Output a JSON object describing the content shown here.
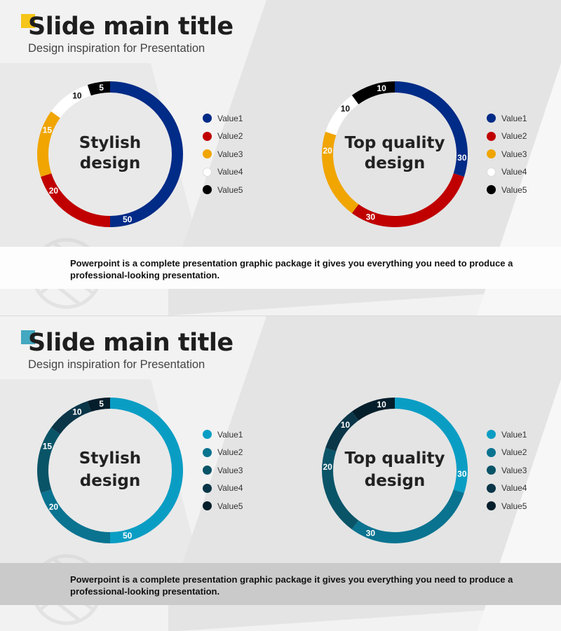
{
  "slides": [
    {
      "title": "Slide main title",
      "subtitle": "Design inspiration for Presentation",
      "accent_color": "#f5c518",
      "footer_text": "Powerpoint is a complete presentation graphic package it gives you everything you need to produce a professional-looking presentation.",
      "footer_band_color": "#fdfdfd",
      "legend": [
        "Value1",
        "Value2",
        "Value3",
        "Value4",
        "Value5"
      ],
      "colors": [
        "#002b87",
        "#c00000",
        "#f0a500",
        "#ffffff",
        "#000000"
      ],
      "label_colors": [
        "#ffffff",
        "#ffffff",
        "#ffffff",
        "#111111",
        "#ffffff"
      ],
      "legend_dot_borders": [
        "",
        "",
        "",
        "#dddddd",
        ""
      ]
    },
    {
      "title": "Slide main title",
      "subtitle": "Design inspiration for Presentation",
      "accent_color": "#44a8c0",
      "footer_text": "Powerpoint is a complete presentation graphic package it gives you everything you need to produce a professional-looking presentation.",
      "footer_band_color": "#cacaca",
      "legend": [
        "Value1",
        "Value2",
        "Value3",
        "Value4",
        "Value5"
      ],
      "colors": [
        "#0a9dc4",
        "#0a7390",
        "#0a5468",
        "#0a3648",
        "#041e2b"
      ],
      "label_colors": [
        "#ffffff",
        "#ffffff",
        "#ffffff",
        "#ffffff",
        "#ffffff"
      ],
      "legend_dot_borders": [
        "",
        "",
        "",
        "",
        ""
      ]
    }
  ],
  "chart_data": [
    {
      "type": "pie",
      "categories": [
        "Value1",
        "Value2",
        "Value3",
        "Value4",
        "Value5"
      ],
      "values": [
        50,
        20,
        15,
        10,
        5
      ],
      "title": "Stylish design",
      "center_lines": [
        "Stylish",
        "design"
      ]
    },
    {
      "type": "pie",
      "categories": [
        "Value1",
        "Value2",
        "Value3",
        "Value4",
        "Value5"
      ],
      "values": [
        30,
        30,
        20,
        10,
        10
      ],
      "title": "Top quality design",
      "center_lines": [
        "Top quality",
        "design"
      ]
    },
    {
      "type": "pie",
      "categories": [
        "Value1",
        "Value2",
        "Value3",
        "Value4",
        "Value5"
      ],
      "values": [
        50,
        20,
        15,
        10,
        5
      ],
      "title": "Stylish design",
      "center_lines": [
        "Stylish",
        "design"
      ]
    },
    {
      "type": "pie",
      "categories": [
        "Value1",
        "Value2",
        "Value3",
        "Value4",
        "Value5"
      ],
      "values": [
        30,
        30,
        20,
        10,
        10
      ],
      "title": "Top quality design",
      "center_lines": [
        "Top quality",
        "design"
      ]
    }
  ]
}
